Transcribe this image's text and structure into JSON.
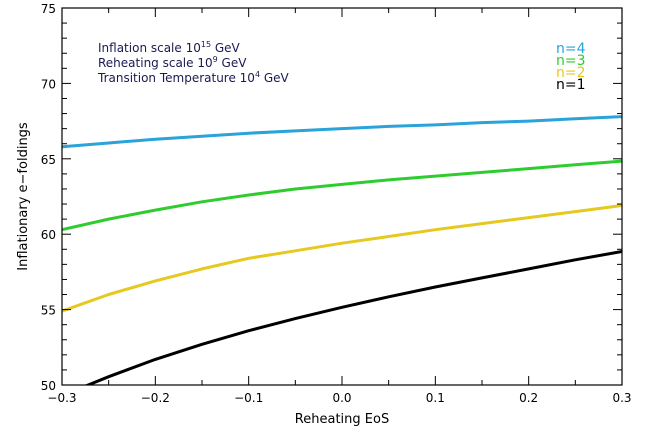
{
  "chart_data": {
    "type": "line",
    "xlabel": "Reheating EoS",
    "ylabel": "Inflationary e−foldings",
    "xlim": [
      -0.3,
      0.3
    ],
    "ylim": [
      50,
      75
    ],
    "x_ticks": [
      "−0.3",
      "−0.2",
      "−0.1",
      "0.0",
      "0.1",
      "0.2",
      "0.3"
    ],
    "x_tick_values": [
      -0.3,
      -0.2,
      -0.1,
      0.0,
      0.1,
      0.2,
      0.3
    ],
    "y_ticks": [
      "50",
      "55",
      "60",
      "65",
      "70",
      "75"
    ],
    "y_tick_values": [
      50,
      55,
      60,
      65,
      70,
      75
    ],
    "grid": false,
    "legend_position": "top-right",
    "annotations": [
      {
        "base": "Inflation scale 10",
        "sup": "15",
        "tail": " GeV"
      },
      {
        "base": "Reheating scale 10",
        "sup": "9",
        "tail": " GeV"
      },
      {
        "base": "Transition Temperature 10",
        "sup": "4",
        "tail": " GeV"
      }
    ],
    "x": [
      -0.3,
      -0.25,
      -0.2,
      -0.15,
      -0.1,
      -0.05,
      0.0,
      0.05,
      0.1,
      0.15,
      0.2,
      0.25,
      0.3
    ],
    "series": [
      {
        "name": "n=4",
        "color": "#29a3d9",
        "values": [
          65.8,
          66.05,
          66.3,
          66.5,
          66.7,
          66.85,
          67.0,
          67.15,
          67.25,
          67.4,
          67.5,
          67.65,
          67.8
        ]
      },
      {
        "name": "n=3",
        "color": "#2ecc2e",
        "values": [
          60.3,
          61.0,
          61.6,
          62.15,
          62.6,
          63.0,
          63.3,
          63.6,
          63.85,
          64.1,
          64.35,
          64.6,
          64.85
        ]
      },
      {
        "name": "n=2",
        "color": "#e6c81e",
        "values": [
          54.9,
          56.0,
          56.9,
          57.7,
          58.4,
          58.9,
          59.4,
          59.85,
          60.3,
          60.7,
          61.1,
          61.5,
          61.9
        ]
      },
      {
        "name": "n=1",
        "color": "#000000",
        "values": [
          49.3,
          50.55,
          51.7,
          52.7,
          53.6,
          54.4,
          55.15,
          55.85,
          56.5,
          57.1,
          57.7,
          58.3,
          58.85
        ]
      }
    ]
  }
}
